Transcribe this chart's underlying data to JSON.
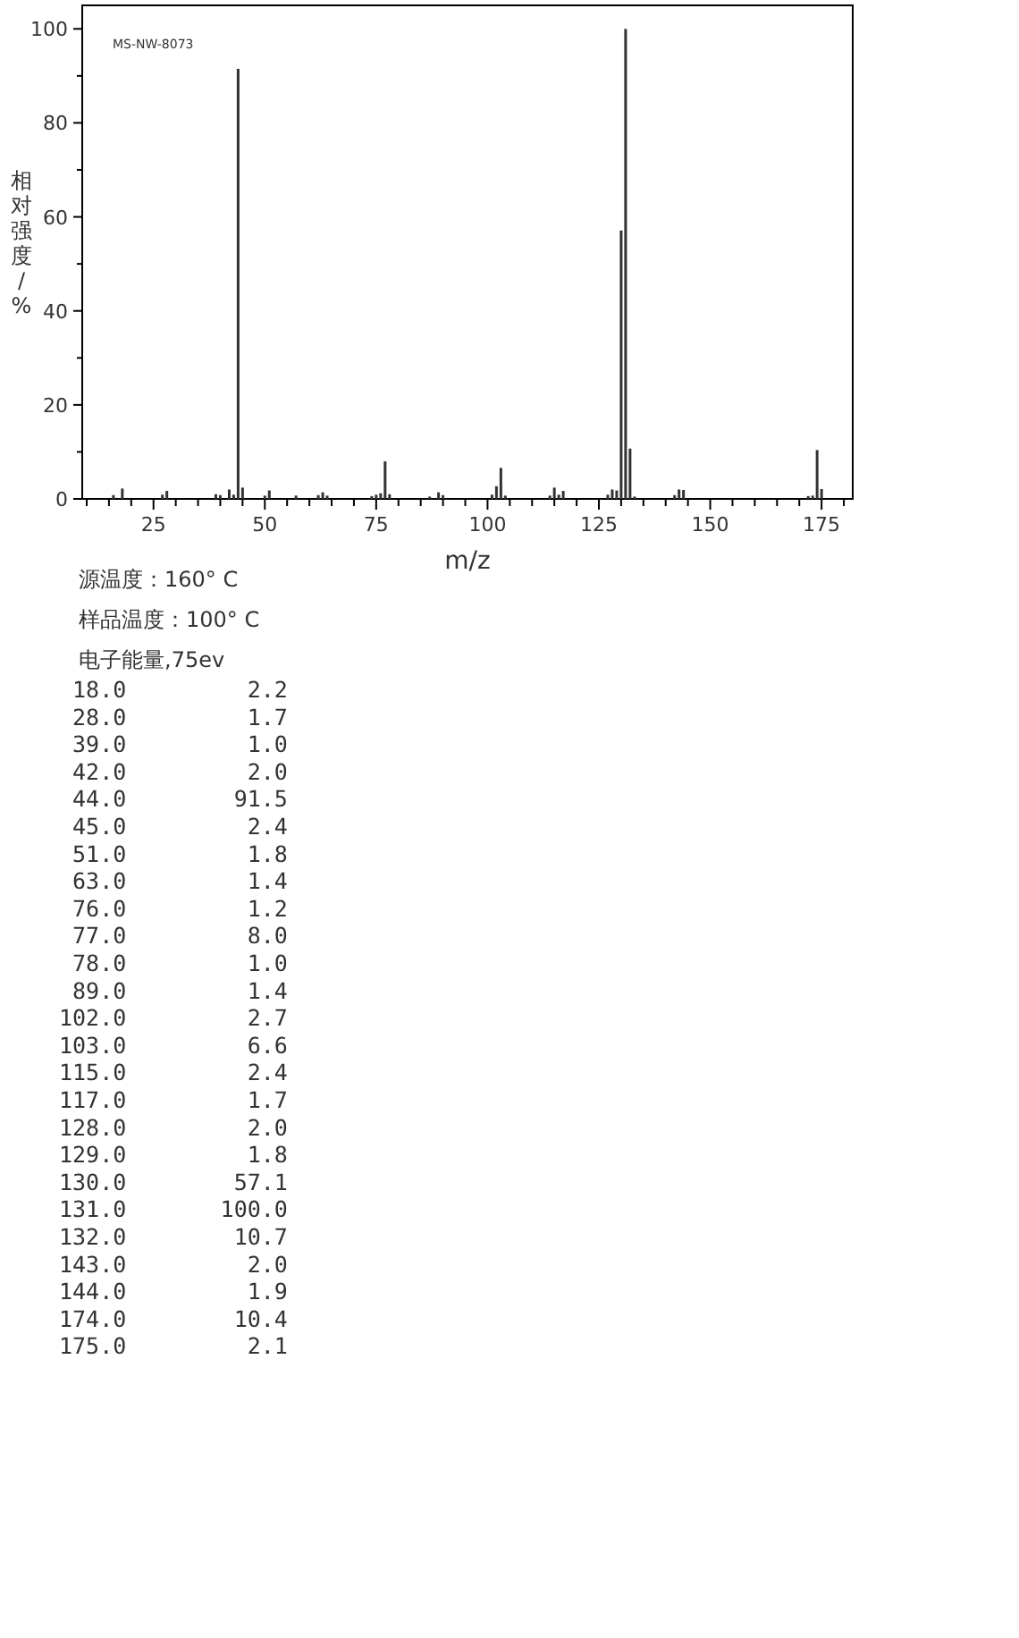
{
  "chart_data": {
    "type": "bar",
    "xlabel": "m/z",
    "ylabel": "相对强度/%",
    "x": [
      16,
      18,
      27,
      28,
      39,
      40,
      42,
      43,
      44,
      45,
      50,
      51,
      57,
      62,
      63,
      64,
      74,
      75,
      76,
      77,
      78,
      87,
      89,
      90,
      101,
      102,
      103,
      104,
      114,
      115,
      116,
      117,
      127,
      128,
      129,
      130,
      131,
      132,
      133,
      142,
      143,
      144,
      172,
      173,
      174,
      175
    ],
    "values": [
      0.8,
      2.2,
      0.9,
      1.7,
      1.0,
      0.8,
      2.0,
      0.9,
      91.5,
      2.4,
      0.7,
      1.8,
      0.7,
      0.8,
      1.4,
      0.7,
      0.6,
      0.9,
      1.2,
      8.0,
      1.0,
      0.5,
      1.4,
      0.8,
      0.9,
      2.7,
      6.6,
      0.7,
      0.7,
      2.4,
      0.9,
      1.7,
      0.9,
      2.0,
      1.8,
      57.1,
      100.0,
      10.7,
      0.5,
      0.8,
      2.0,
      1.9,
      0.6,
      0.7,
      10.4,
      2.1
    ],
    "color": "#333333",
    "xlim": [
      9,
      182
    ],
    "xticks": [
      {
        "value": 10,
        "label": null
      },
      {
        "value": 15,
        "label": null
      },
      {
        "value": 20,
        "label": null
      },
      25,
      {
        "value": 30,
        "label": null
      },
      {
        "value": 35,
        "label": null
      },
      {
        "value": 40,
        "label": null
      },
      {
        "value": 45,
        "label": null
      },
      50,
      {
        "value": 55,
        "label": null
      },
      {
        "value": 60,
        "label": null
      },
      {
        "value": 65,
        "label": null
      },
      {
        "value": 70,
        "label": null
      },
      75,
      {
        "value": 80,
        "label": null
      },
      {
        "value": 85,
        "label": null
      },
      {
        "value": 90,
        "label": null
      },
      {
        "value": 95,
        "label": null
      },
      100,
      {
        "value": 105,
        "label": null
      },
      {
        "value": 110,
        "label": null
      },
      {
        "value": 115,
        "label": null
      },
      {
        "value": 120,
        "label": null
      },
      125,
      {
        "value": 130,
        "label": null
      },
      {
        "value": 135,
        "label": null
      },
      {
        "value": 140,
        "label": null
      },
      {
        "value": 145,
        "label": null
      },
      150,
      {
        "value": 155,
        "label": null
      },
      {
        "value": 160,
        "label": null
      },
      {
        "value": 165,
        "label": null
      },
      {
        "value": 170,
        "label": null
      },
      175,
      {
        "value": 180,
        "label": null
      }
    ],
    "ylim": [
      0,
      105
    ],
    "yticks": [
      0,
      {
        "value": 10,
        "label": null
      },
      20,
      {
        "value": 30,
        "label": null
      },
      40,
      {
        "value": 50,
        "label": null
      },
      60,
      {
        "value": 70,
        "label": null
      },
      80,
      {
        "value": 90,
        "label": null
      },
      100
    ],
    "grid": false,
    "annotations": [
      "MS-NW-8073",
      "源温度：160° C",
      "样品温度：100° C",
      "电子能量,75ev",
      " 18.0         2.2",
      " 28.0         1.7",
      " 39.0         1.0",
      " 42.0         2.0",
      " 44.0        91.5",
      " 45.0         2.4",
      " 51.0         1.8",
      " 63.0         1.4",
      " 76.0         1.2",
      " 77.0         8.0",
      " 78.0         1.0",
      " 89.0         1.4",
      "102.0         2.7",
      "103.0         6.6",
      "115.0         2.4",
      "117.0         1.7",
      "128.0         2.0",
      "129.0         1.8",
      "130.0        57.1",
      "131.0       100.0",
      "132.0        10.7",
      "143.0         2.0",
      "144.0         1.9",
      "174.0        10.4",
      "175.0         2.1"
    ]
  }
}
